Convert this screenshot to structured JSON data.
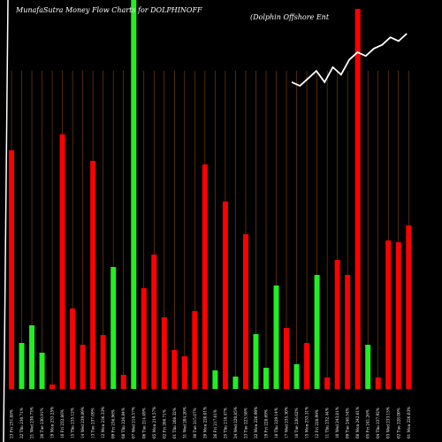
{
  "chart_data": {
    "type": "bar",
    "title": "MunafaSutra  Money Flow  Charts for DOLPHINOFF",
    "subtitle": "(Dolphin  Offshore  Ent",
    "categories": [
      "23 Fri 231.88%",
      "22 Thu 230.71%",
      "21 Wed 230.73%",
      "20 Tue 230.91%",
      "19 Mon 233.25%",
      "16 Fri 232.86%",
      "15 Thu 235.12%",
      "14 Wed 239.89%",
      "13 Tue 237.09%",
      "12 Mon 236.33%",
      "09 Fri 236.96%",
      "08 Thu 226.84%",
      "07 Wed 218.57%",
      "06 Tue 214.49%",
      "05 Mon 214.57%",
      "02 Fri 206.71%",
      "01 Thu 208.32%",
      "31 Wed 204.20%",
      "30 Tue 215.07%",
      "29 Mon 220.01%",
      "26 Fri 217.61%",
      "25 Thu 218.47%",
      "24 Wed 220.85%",
      "23 Tue 223.58%",
      "22 Mon 226.90%",
      "19 Fri 228.69%",
      "18 Thu 229.14%",
      "17 Wed 235.30%",
      "16 Tue 236.62%",
      "15 Mon 233.31%",
      "12 Fri 228.99%",
      "11 Thu 232.44%",
      "10 Wed 243.81%",
      "09 Tue 248.54%",
      "08 Mon 242.61%",
      "05 Fri 241.26%",
      "04 Thu 237.92%",
      "03 Wed 233.15%",
      "02 Tue 228.00%",
      "01 Mon 226.03%"
    ],
    "values": [
      -270,
      52,
      72,
      41,
      -5,
      -288,
      -91,
      -50,
      -258,
      -61,
      138,
      -16,
      440,
      -114,
      -152,
      -81,
      -44,
      -37,
      -88,
      -254,
      21,
      -212,
      14,
      -175,
      62,
      24,
      117,
      -69,
      28,
      -52,
      129,
      -13,
      -146,
      -129,
      -430,
      50,
      -13,
      -168,
      -166,
      -185
    ],
    "bar_range": [
      0,
      440
    ],
    "line": [
      228,
      227,
      229,
      231,
      228,
      232,
      230,
      234,
      236,
      235,
      237,
      238,
      240,
      239,
      241
    ],
    "line_range": [
      205,
      250
    ],
    "colors": {
      "positive": "#22ee22",
      "negative": "#ff0000",
      "line": "#ffffff",
      "grid": "#8b4513",
      "background": "#000000",
      "text": "#ffffff"
    }
  }
}
